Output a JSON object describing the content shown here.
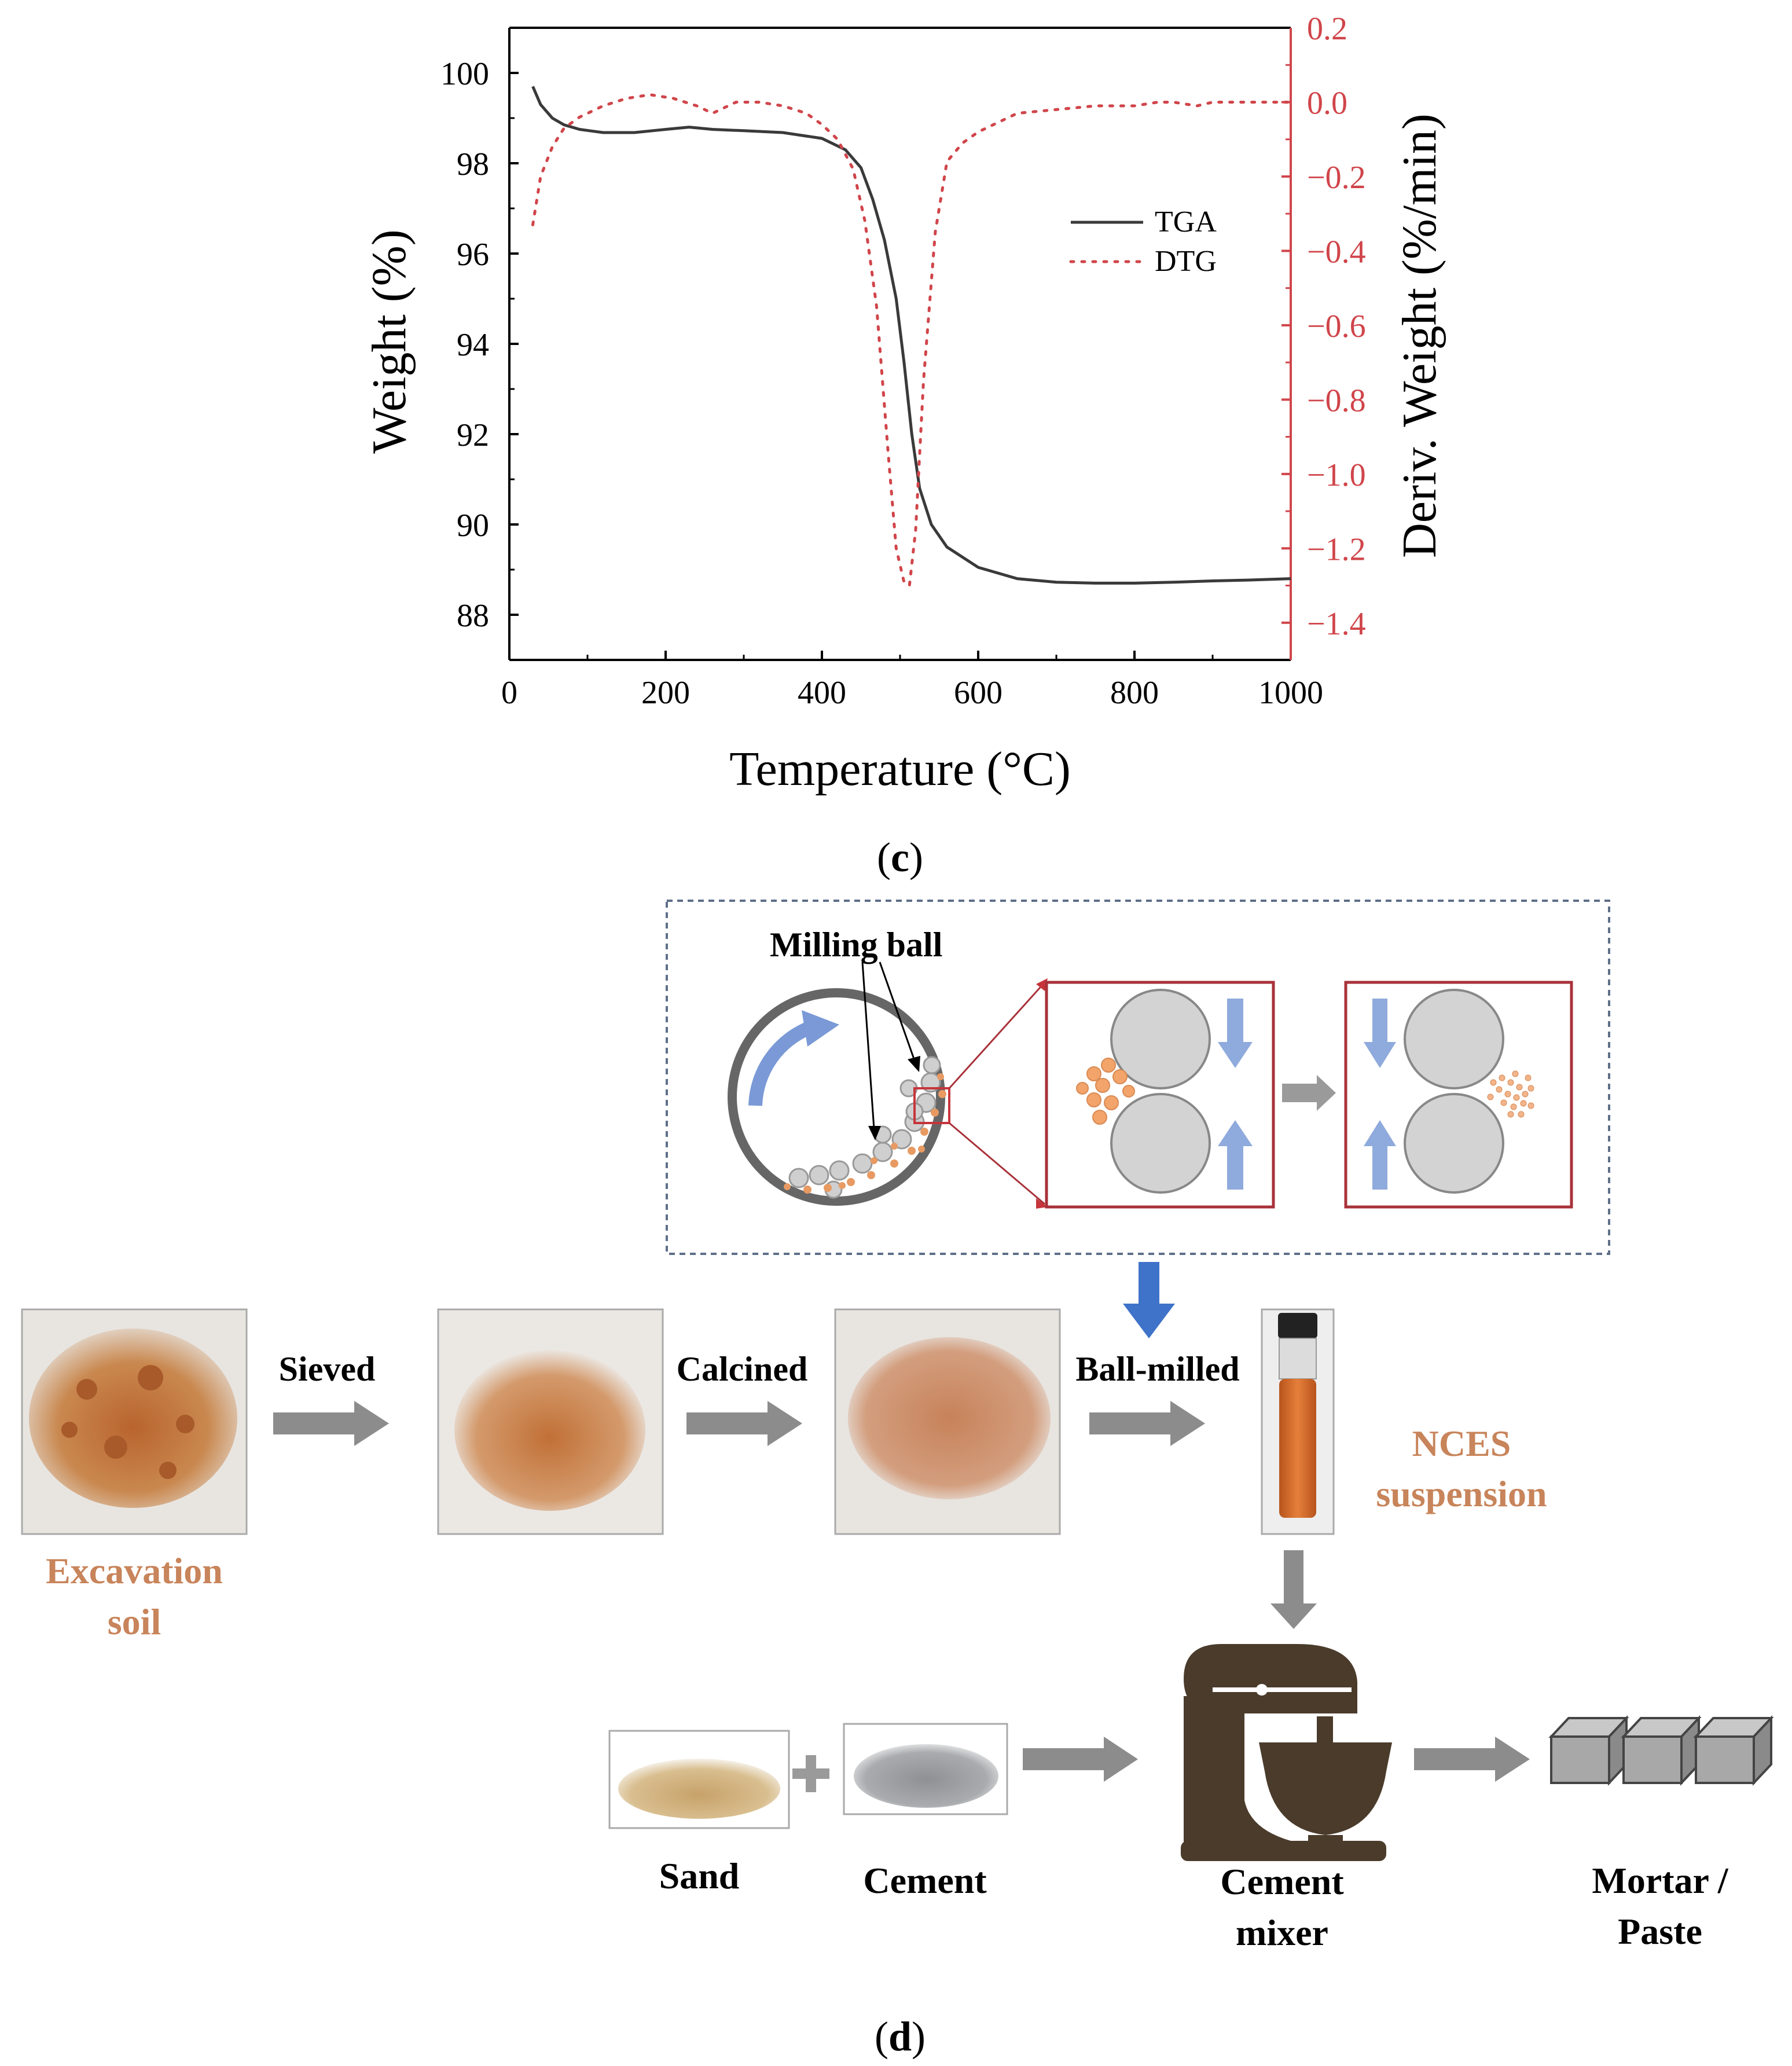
{
  "panel_c": {
    "label": "c",
    "chart_data": {
      "type": "line",
      "xlabel": "Temperature (°C)",
      "ylabel_left": "Weight (%)",
      "ylabel_right": "Deriv. Weight (%/min)",
      "xlim": [
        0,
        1000
      ],
      "ylim_left": [
        87,
        101
      ],
      "ylim_right": [
        -1.5,
        0.2
      ],
      "x_ticks": [
        "0",
        "200",
        "400",
        "600",
        "800",
        "1000"
      ],
      "y_left_ticks": [
        "88",
        "90",
        "92",
        "94",
        "96",
        "98",
        "100"
      ],
      "y_right_ticks": [
        "0.2",
        "0.0",
        "−0.2",
        "−0.4",
        "−0.6",
        "−0.8",
        "−1.0",
        "−1.2",
        "−1.4"
      ],
      "legend": [
        "TGA",
        "DTG"
      ],
      "series": [
        {
          "name": "TGA",
          "axis": "left",
          "color": "#3a3a3a",
          "style": "solid",
          "x": [
            30,
            40,
            55,
            70,
            90,
            120,
            160,
            200,
            230,
            260,
            300,
            350,
            400,
            430,
            450,
            465,
            480,
            495,
            505,
            515,
            525,
            540,
            560,
            600,
            650,
            700,
            750,
            800,
            850,
            900,
            950,
            1000
          ],
          "y": [
            99.7,
            99.3,
            99.0,
            98.85,
            98.75,
            98.68,
            98.68,
            98.75,
            98.8,
            98.75,
            98.72,
            98.68,
            98.55,
            98.3,
            97.9,
            97.2,
            96.3,
            95.0,
            93.6,
            92.0,
            90.8,
            90.0,
            89.5,
            89.05,
            88.8,
            88.72,
            88.7,
            88.7,
            88.72,
            88.75,
            88.77,
            88.8
          ]
        },
        {
          "name": "DTG",
          "axis": "right",
          "color": "#d0454a",
          "style": "dotted",
          "x": [
            30,
            40,
            55,
            70,
            90,
            120,
            150,
            180,
            210,
            240,
            260,
            290,
            320,
            350,
            380,
            400,
            420,
            440,
            455,
            470,
            485,
            495,
            505,
            512,
            520,
            530,
            545,
            560,
            580,
            600,
            650,
            700,
            750,
            800,
            830,
            850,
            880,
            900,
            950,
            1000
          ],
          "y": [
            -0.33,
            -0.2,
            -0.12,
            -0.07,
            -0.04,
            -0.01,
            0.01,
            0.02,
            0.01,
            -0.01,
            -0.03,
            0.0,
            0.0,
            -0.01,
            -0.03,
            -0.06,
            -0.1,
            -0.18,
            -0.32,
            -0.55,
            -0.95,
            -1.2,
            -1.29,
            -1.3,
            -1.15,
            -0.75,
            -0.35,
            -0.16,
            -0.11,
            -0.08,
            -0.03,
            -0.02,
            -0.01,
            -0.01,
            0.0,
            0.0,
            -0.01,
            0.0,
            0.0,
            0.0
          ]
        }
      ]
    }
  },
  "panel_d": {
    "label": "d",
    "milling_ball_label": "Milling ball",
    "steps": [
      "Sieved",
      "Calcined",
      "Ball-milled"
    ],
    "excavation_soil": [
      "Excavation",
      "soil"
    ],
    "nces": [
      "NCES",
      "suspension"
    ],
    "sand_label": "Sand",
    "cement_label": "Cement",
    "mixer": [
      "Cement",
      "mixer"
    ],
    "product": [
      "Mortar /",
      "Paste"
    ],
    "colors": {
      "accent_orange": "#c8845a",
      "arrow_gray": "#8c8c8c",
      "arrow_blue": "#3f72c9",
      "frame_red": "#a8323a",
      "mixer_brown": "#4a3b2b"
    }
  }
}
